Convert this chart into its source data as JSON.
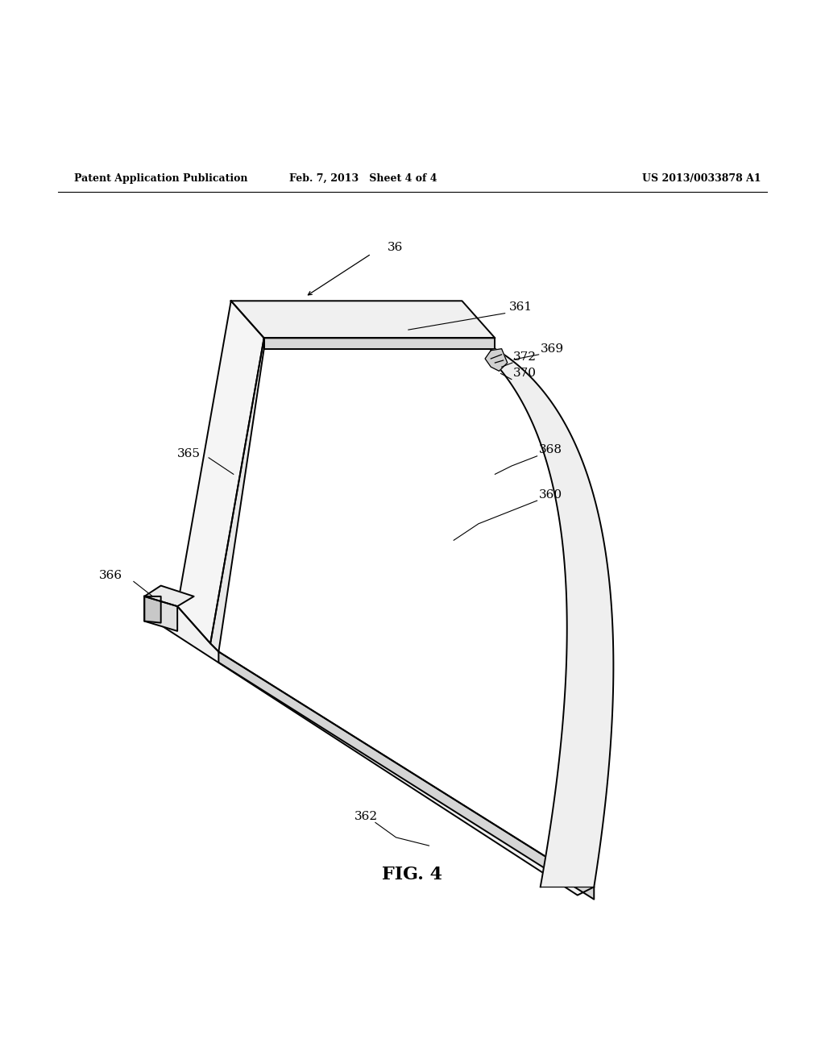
{
  "background_color": "#ffffff",
  "line_color": "#000000",
  "header_left": "Patent Application Publication",
  "header_center": "Feb. 7, 2013   Sheet 4 of 4",
  "header_right": "US 2013/0033878 A1",
  "figure_label": "FIG. 4",
  "top_fin_color": "#f0f0f0",
  "top_fin_front_color": "#d8d8d8",
  "vp_right_color": "#e8e8e8",
  "vp_left_color": "#f5f5f5",
  "base_top_color": "#f2f2f2",
  "base_front_color": "#d5d5d5",
  "small_box_color": "#e0e0e0",
  "small_box_front_color": "#c8c8c8",
  "small_box_top_color": "#ebebeb",
  "blade_fill_color": "#efefef",
  "clip_color": "#d0d0d0"
}
